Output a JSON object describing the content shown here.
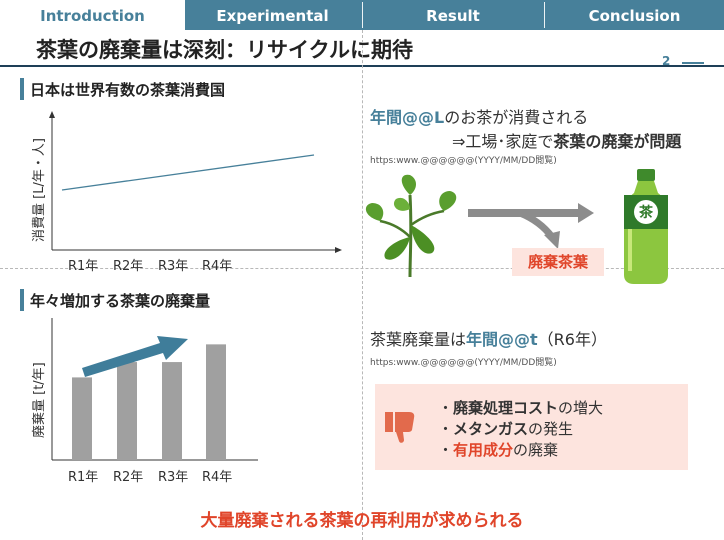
{
  "tabs": [
    "Introduction",
    "Experimental",
    "Result",
    "Conclusion"
  ],
  "active_tab": "Introduction",
  "title": "茶葉の廃棄量は深刻：リサイクルに期待",
  "page_number": "2",
  "left_top": {
    "heading": "日本は世界有数の茶葉消費国",
    "ylabel": "消費量 [L/年・人]",
    "chart_data": {
      "type": "line",
      "categories": [
        "R1年",
        "R2年",
        "R3年",
        "R4年"
      ],
      "ylabel": "消費量 [L/年・人]"
    }
  },
  "left_bottom": {
    "heading": "年々増加する茶葉の廃棄量",
    "ylabel": "廃棄量 [t/年]",
    "chart_data": {
      "type": "bar",
      "categories": [
        "R1年",
        "R2年",
        "R3年",
        "R4年"
      ],
      "values": [
        0.7,
        0.83,
        0.83,
        0.98
      ],
      "ylabel": "廃棄量 [t/年]"
    }
  },
  "right_top": {
    "line1_a": "年間@@L",
    "line1_b": "のお茶が消費される",
    "line2_a": "⇒工場･家庭で",
    "line2_b": "茶葉の廃棄が問題",
    "url": "https:www.@@@@@@(YYYY/MM/DD閲覧)",
    "tag": "廃棄茶葉",
    "bottle_label": "茶"
  },
  "right_bottom": {
    "line_a": "茶葉廃棄量は",
    "line_b": "年間@@t",
    "line_c": "（R6年）",
    "url": "https:www.@@@@@@(YYYY/MM/DD閲覧)",
    "bullets": [
      {
        "bullet": "・",
        "bold": "廃棄処理コスト",
        "rest": "の増大"
      },
      {
        "bullet": "・",
        "bold": "メタンガス",
        "rest": "の発生"
      },
      {
        "bullet": "・",
        "bold": "有用成分",
        "rest": "の廃棄"
      }
    ]
  },
  "conclusion": "大量廃棄される茶葉の再利用が求められる",
  "colors": {
    "accent": "#47809a",
    "alert": "#e0452a",
    "alert_bg": "#fde4de",
    "bar": "#a0a0a0"
  }
}
